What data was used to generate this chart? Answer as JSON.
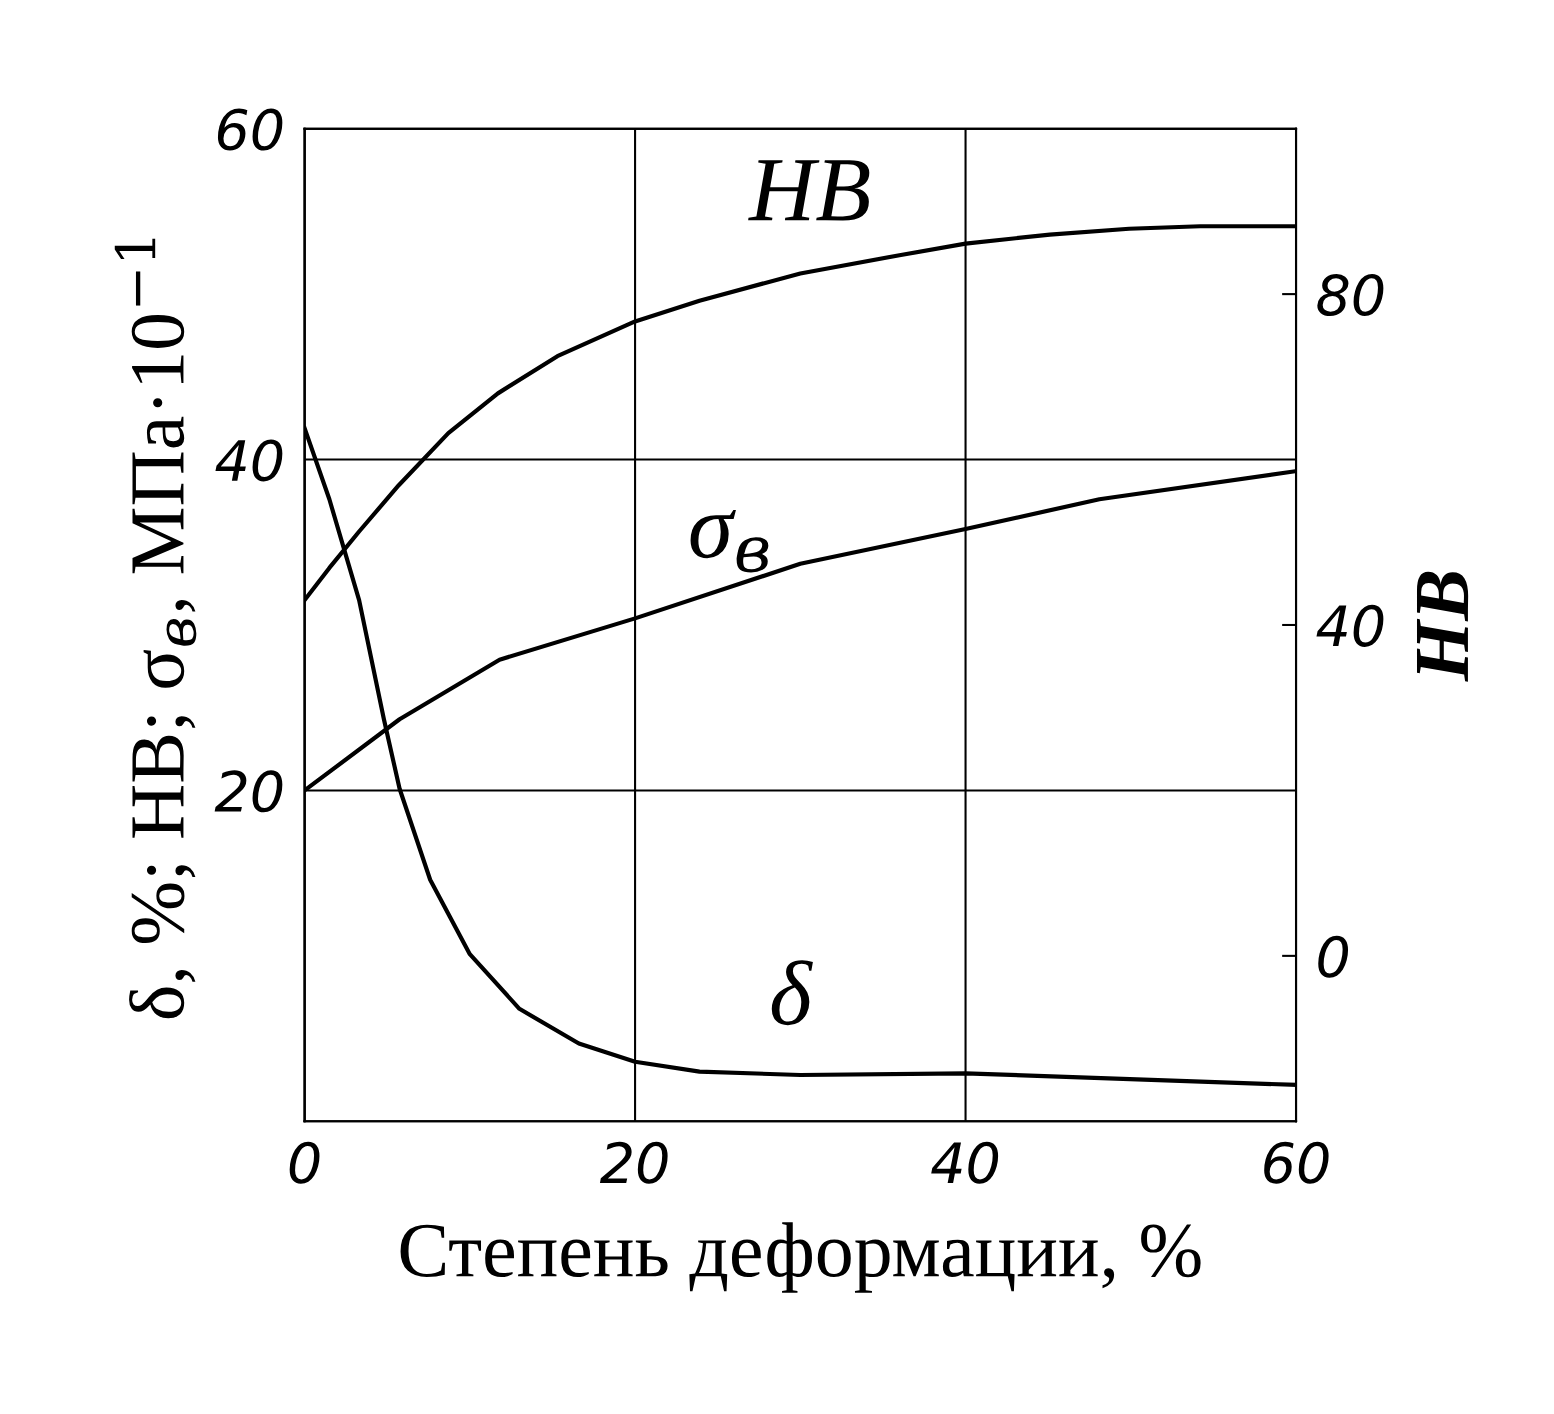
{
  "chart_data": {
    "type": "line",
    "xlabel": "Степень деформации, %",
    "ylabel": "δ, %; HB; σ$_{в}$, МПа·10$^{−1}$",
    "y2label": "HB",
    "xlim": [
      0,
      60
    ],
    "xticks": [
      0,
      20,
      40,
      60
    ],
    "ylim": [
      0,
      60
    ],
    "yticks": [
      20,
      40,
      60
    ],
    "y2lim": [
      -20,
      100
    ],
    "y2ticks": [
      0,
      40,
      80
    ],
    "grid": true,
    "legend": false,
    "marker": "none",
    "line_style": "solid",
    "series": [
      {
        "name": "HB",
        "color": "#000000",
        "axis": "y2",
        "x": [
          0,
          1.5,
          3.3,
          5.7,
          8.7,
          11.7,
          15.3,
          20,
          23.9,
          30,
          36,
          40,
          45.1,
          49.9,
          54.2,
          60
        ],
        "values": [
          43,
          46.9,
          51.3,
          56.9,
          63.2,
          68,
          72.5,
          76.7,
          79.2,
          82.5,
          84.7,
          86.1,
          87.2,
          87.9,
          88.2,
          88.2
        ]
      },
      {
        "name": "σ$_{в}$",
        "color": "#000000",
        "x": [
          0,
          5.75,
          11.8,
          20,
          30,
          40,
          48.1,
          60
        ],
        "values": [
          20,
          24.3,
          27.9,
          30.4,
          33.7,
          35.8,
          37.6,
          39.3
        ]
      },
      {
        "name": "δ",
        "color": "#000000",
        "x": [
          0,
          1.5,
          3.3,
          4.8,
          5.75,
          7.6,
          10,
          13,
          16.6,
          20,
          23.9,
          30,
          40,
          60
        ],
        "values": [
          41.9,
          37.6,
          31.5,
          24.3,
          20.1,
          14.6,
          10.1,
          6.8,
          4.7,
          3.6,
          3.0,
          2.8,
          2.9,
          2.2
        ]
      }
    ]
  }
}
